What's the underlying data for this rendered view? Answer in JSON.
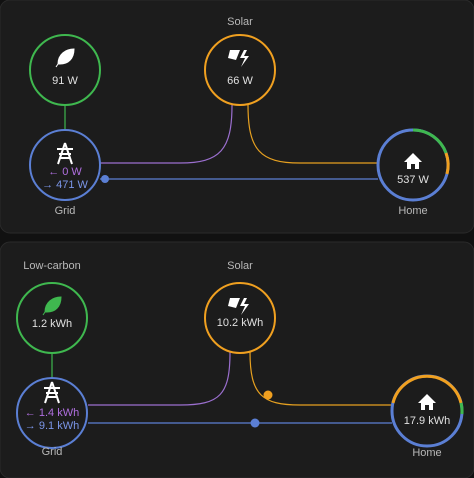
{
  "cards": [
    {
      "solar": {
        "label": "Solar",
        "value": "66 W"
      },
      "low_carbon": {
        "value": "91 W"
      },
      "grid": {
        "label": "Grid",
        "export": "← 0 W",
        "import": "→ 471 W"
      },
      "home": {
        "label": "Home",
        "value": "537 W"
      }
    },
    {
      "solar": {
        "label": "Solar",
        "value": "10.2 kWh"
      },
      "low_carbon": {
        "label": "Low-carbon",
        "value": "1.2 kWh"
      },
      "grid": {
        "label": "Grid",
        "export": "← 1.4 kWh",
        "import": "→ 9.1 kWh"
      },
      "home": {
        "label": "Home",
        "value": "17.9 kWh"
      }
    }
  ]
}
